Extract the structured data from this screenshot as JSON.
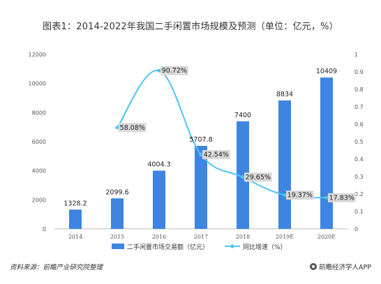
{
  "chart_data": {
    "type": "bar+line",
    "title": "图表1：2014-2022年我国二手闲置市场规模及预测（单位：亿元，%）",
    "categories": [
      "2014",
      "2015",
      "2016",
      "2017",
      "2018",
      "2019E",
      "2020E"
    ],
    "series": [
      {
        "name": "二手闲置市场交易额（亿元）",
        "type": "bar",
        "axis": "left",
        "color": "#3d85e0",
        "values": [
          1328.2,
          2099.6,
          4004.3,
          5707.8,
          7400,
          8834,
          10409
        ],
        "labels": [
          "1328.2",
          "2099.6",
          "4004.3",
          "5707.8",
          "7400",
          "8834",
          "10409"
        ]
      },
      {
        "name": "同比增速（%）",
        "type": "line",
        "axis": "right",
        "color": "#4fc3f7",
        "values": [
          null,
          0.5808,
          0.9072,
          0.4254,
          0.2965,
          0.1937,
          0.1783
        ],
        "labels": [
          "",
          "58.08%",
          "90.72%",
          "42.54%",
          "29.65%",
          "19.37%",
          "17.83%"
        ]
      }
    ],
    "y_left": {
      "range": [
        0,
        12000
      ],
      "ticks": [
        "0",
        "2000",
        "4000",
        "6000",
        "8000",
        "10000",
        "12000"
      ]
    },
    "y_right": {
      "range": [
        0,
        1
      ],
      "ticks": [
        "0",
        "0.1",
        "0.2",
        "0.3",
        "0.4",
        "0.5",
        "0.6",
        "0.7",
        "0.8",
        "0.9",
        "1"
      ]
    },
    "grid": false,
    "legend": "bottom"
  },
  "footer": {
    "source": "资料来源：前瞻产业研究院整理",
    "brand": "前瞻经济学人APP"
  }
}
